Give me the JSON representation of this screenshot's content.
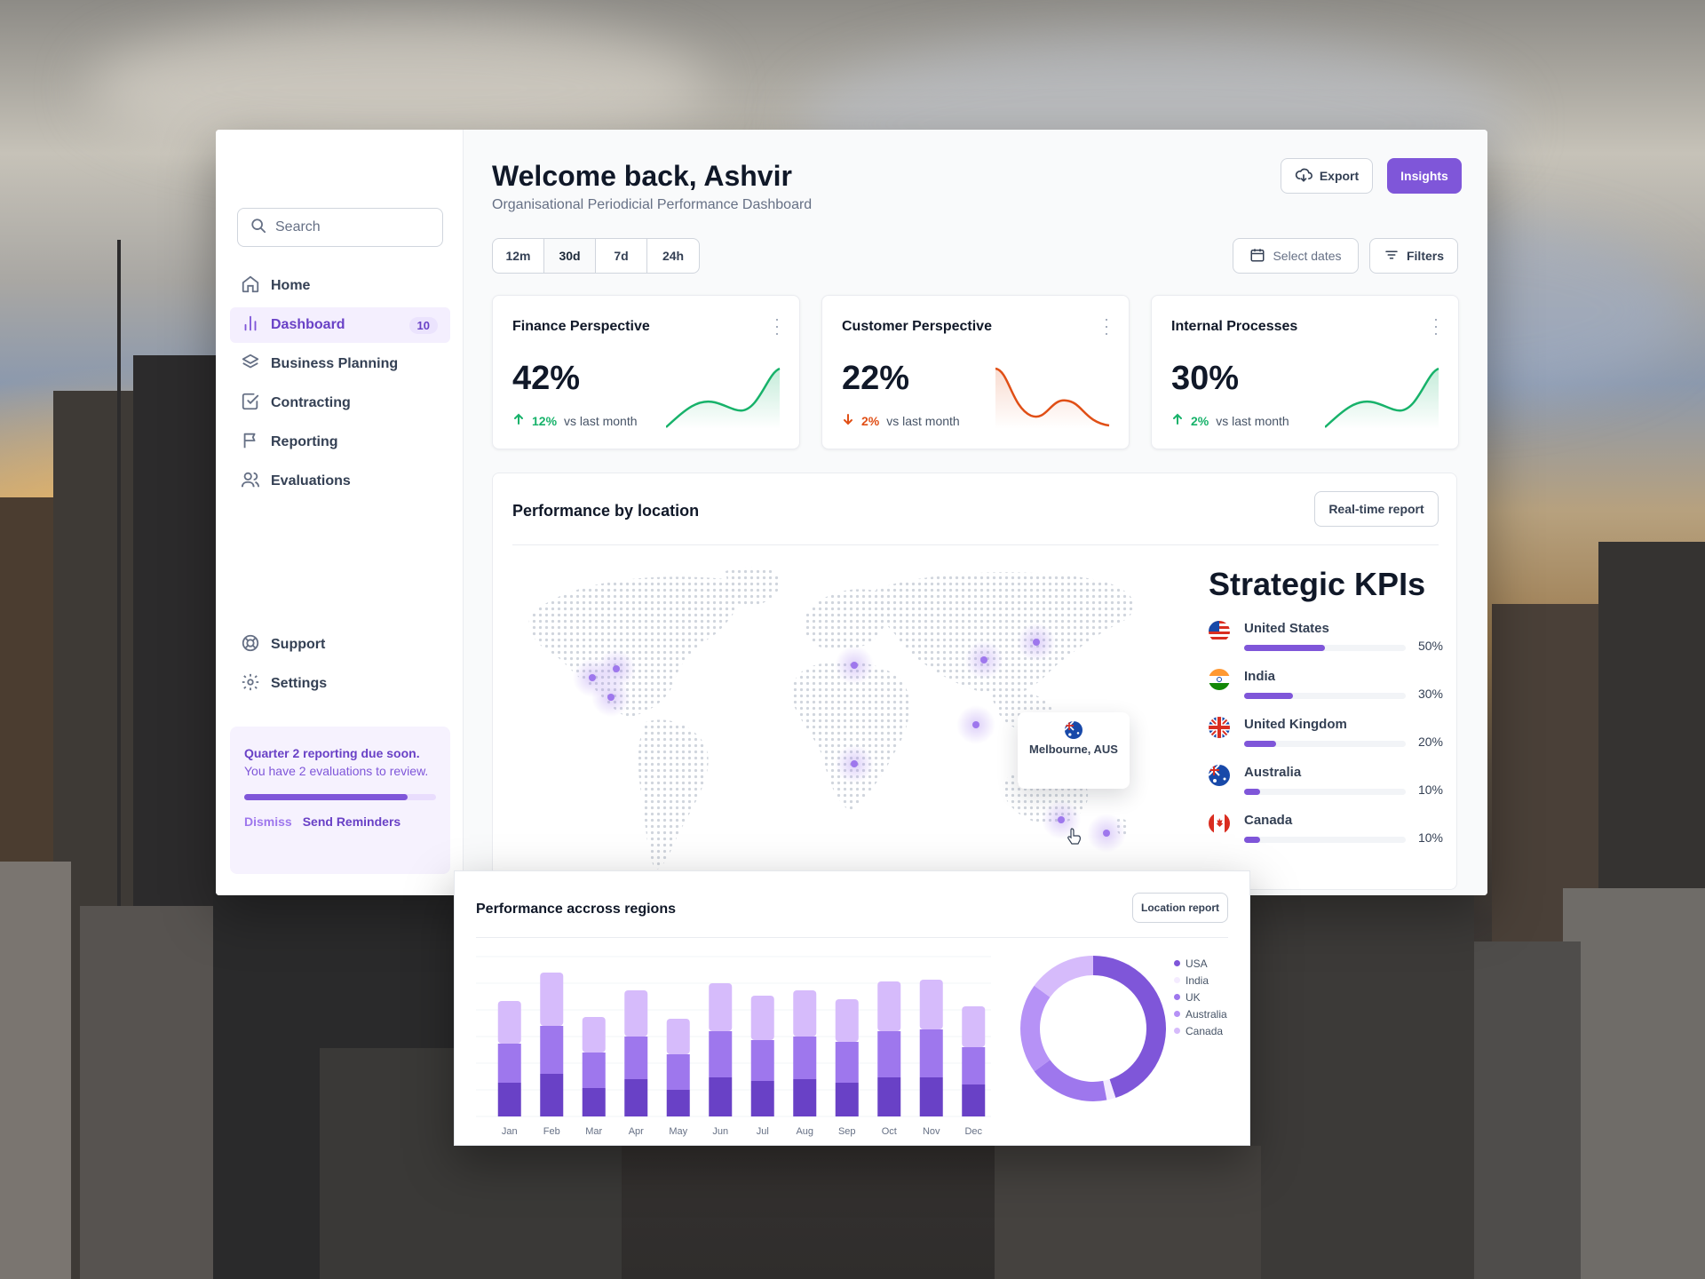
{
  "user": {
    "welcome": "Welcome back, Ashvir"
  },
  "page": {
    "subtitle": "Organisational Periodicial Performance Dashboard"
  },
  "header": {
    "export_label": "Export",
    "insights_label": "Insights"
  },
  "search": {
    "placeholder": "Search"
  },
  "sidebar": {
    "items": [
      {
        "label": "Home",
        "icon": "home-icon"
      },
      {
        "label": "Dashboard",
        "icon": "bar-chart-icon",
        "badge": "10",
        "active": true
      },
      {
        "label": "Business Planning",
        "icon": "layers-icon"
      },
      {
        "label": "Contracting",
        "icon": "check-square-icon"
      },
      {
        "label": "Reporting",
        "icon": "flag-icon"
      },
      {
        "label": "Evaluations",
        "icon": "users-icon"
      }
    ],
    "bottom": [
      {
        "label": "Support",
        "icon": "life-buoy-icon"
      },
      {
        "label": "Settings",
        "icon": "gear-icon"
      }
    ]
  },
  "notice": {
    "title": "Quarter 2 reporting due soon.",
    "body": "You have 2 evaluations to review.",
    "progress": 0.85,
    "dismiss": "Dismiss",
    "send": "Send Reminders"
  },
  "filters": {
    "ranges": [
      "12m",
      "30d",
      "7d",
      "24h"
    ],
    "selected": "30d",
    "select_dates": "Select dates",
    "filters_label": "Filters"
  },
  "cards": [
    {
      "title": "Finance Perspective",
      "value": "42%",
      "change": "12%",
      "direction": "up",
      "vs": "vs last month",
      "color": "#17b26a"
    },
    {
      "title": "Customer Perspective",
      "value": "22%",
      "change": "2%",
      "direction": "down",
      "vs": "vs last month",
      "color": "#e04f16"
    },
    {
      "title": "Internal Processes",
      "value": "30%",
      "change": "2%",
      "direction": "up",
      "vs": "vs last month",
      "color": "#17b26a"
    }
  ],
  "location": {
    "title": "Performance by location",
    "report_button": "Real-time report",
    "tooltip": "Melbourne, AUS",
    "kpi_title": "Strategic KPIs",
    "kpis": [
      {
        "country": "United States",
        "pct": "50%",
        "value": 50
      },
      {
        "country": "India",
        "pct": "30%",
        "value": 30
      },
      {
        "country": "United Kingdom",
        "pct": "20%",
        "value": 20
      },
      {
        "country": "Australia",
        "pct": "10%",
        "value": 10
      },
      {
        "country": "Canada",
        "pct": "10%",
        "value": 10
      }
    ]
  },
  "regions": {
    "title": "Performance accross regions",
    "report_button": "Location report",
    "legend": [
      "USA",
      "India",
      "UK",
      "Australia",
      "Canada"
    ]
  },
  "colors": {
    "accent": "#7f56d9",
    "accent_dark": "#6941c6",
    "up": "#17b26a",
    "down": "#e04f16"
  },
  "chart_data": [
    {
      "type": "bar",
      "stacked": true,
      "categories": [
        "Jan",
        "Feb",
        "Mar",
        "Apr",
        "May",
        "Jun",
        "Jul",
        "Aug",
        "Sep",
        "Oct",
        "Nov",
        "Dec"
      ],
      "series": [
        {
          "values": [
            48,
            60,
            40,
            52,
            40,
            54,
            50,
            52,
            48,
            56,
            56,
            46
          ]
        },
        {
          "values": [
            44,
            54,
            40,
            48,
            40,
            52,
            46,
            48,
            46,
            52,
            54,
            42
          ]
        },
        {
          "values": [
            38,
            48,
            32,
            42,
            30,
            44,
            40,
            42,
            38,
            44,
            44,
            36
          ]
        }
      ],
      "ylim": [
        0,
        180
      ],
      "grid": true
    },
    {
      "type": "pie",
      "donut": true,
      "labels": [
        "USA",
        "India",
        "UK",
        "Australia",
        "Canada"
      ],
      "values": [
        45,
        2,
        18,
        20,
        15
      ]
    }
  ]
}
